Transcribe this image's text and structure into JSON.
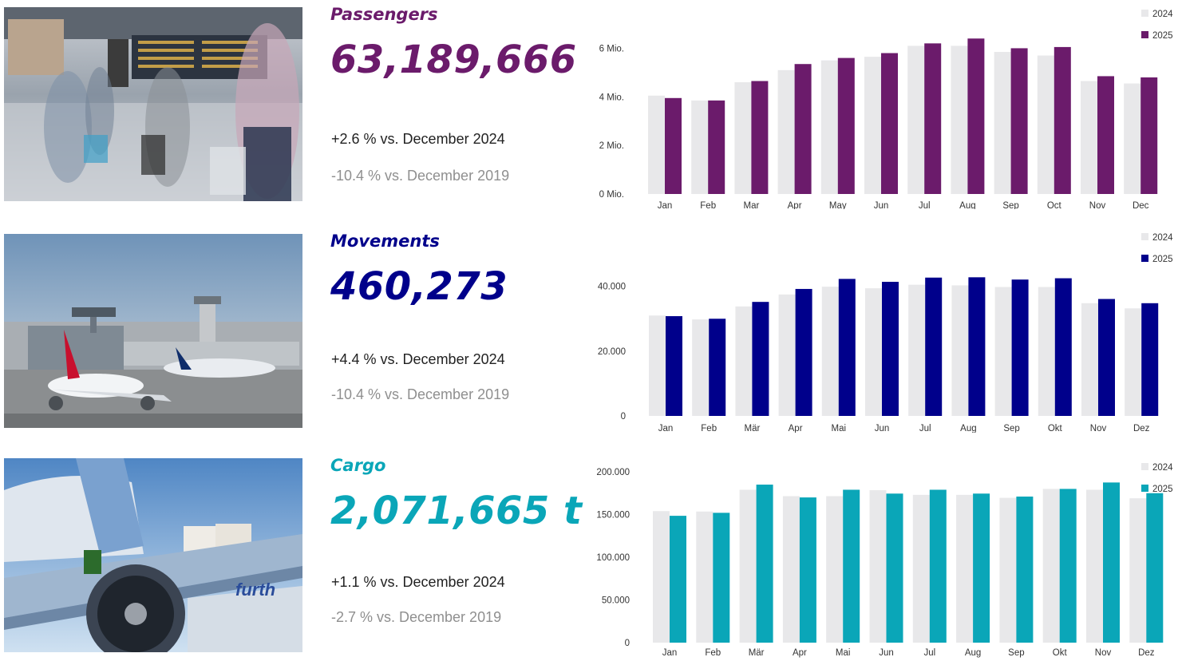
{
  "sections": [
    {
      "id": "passengers",
      "title": "Passengers",
      "kpi": "63,189,666",
      "cmp_prev": "+2.6 % vs. December 2024",
      "cmp_2019": "-10.4 % vs. December 2019",
      "color": "#6b1b6b",
      "photo_icon": "airport-terminal-crowd-photo"
    },
    {
      "id": "movements",
      "title": "Movements",
      "kpi": "460,273",
      "cmp_prev": "+4.4 % vs. December 2024",
      "cmp_2019": "-10.4 % vs. December 2019",
      "color": "#00008b",
      "photo_icon": "aircraft-at-gate-photo"
    },
    {
      "id": "cargo",
      "title": "Cargo",
      "kpi": "2,071,665 t",
      "cmp_prev": "+1.1 % vs. December 2024",
      "cmp_2019": "-2.7 % vs. December 2019",
      "color": "#0aa6b8",
      "photo_icon": "cargo-loading-photo"
    }
  ],
  "chart_data": [
    {
      "type": "bar",
      "categories": [
        "Jan",
        "Feb",
        "Mar",
        "Apr",
        "May",
        "Jun",
        "Jul",
        "Aug",
        "Sep",
        "Oct",
        "Nov",
        "Dec"
      ],
      "series": [
        {
          "name": "2024",
          "color": "#e8e8ea",
          "values": [
            4.05,
            3.85,
            4.6,
            5.1,
            5.5,
            5.65,
            6.1,
            6.1,
            5.85,
            5.7,
            4.65,
            4.55
          ]
        },
        {
          "name": "2025",
          "color": "#6b1b6b",
          "values": [
            3.95,
            3.85,
            4.65,
            5.35,
            5.6,
            5.8,
            6.2,
            6.4,
            6.0,
            6.05,
            4.85,
            4.8
          ]
        }
      ],
      "yticks": [
        0,
        2,
        4,
        6
      ],
      "ytick_labels": [
        "0 Mio.",
        "2 Mio.",
        "4 Mio.",
        "6 Mio."
      ],
      "ylim": [
        0,
        7
      ],
      "legend": "top-right",
      "grid": false
    },
    {
      "type": "bar",
      "categories": [
        "Jan",
        "Feb",
        "Mär",
        "Apr",
        "Mai",
        "Jun",
        "Jul",
        "Aug",
        "Sep",
        "Okt",
        "Nov",
        "Dez"
      ],
      "series": [
        {
          "name": "2024",
          "color": "#e8e8ea",
          "values": [
            31000,
            29800,
            33800,
            37500,
            39900,
            39400,
            40500,
            40300,
            39800,
            39800,
            34800,
            33200
          ]
        },
        {
          "name": "2025",
          "color": "#00008b",
          "values": [
            30800,
            30000,
            35200,
            39200,
            42300,
            41400,
            42700,
            42800,
            42100,
            42500,
            36100,
            34800
          ]
        }
      ],
      "yticks": [
        0,
        20000,
        40000
      ],
      "ytick_labels": [
        "0",
        "20.000",
        "40.000"
      ],
      "ylim": [
        0,
        52000
      ],
      "legend": "top-right",
      "grid": false
    },
    {
      "type": "bar",
      "categories": [
        "Jan",
        "Feb",
        "Mär",
        "Apr",
        "Mai",
        "Jun",
        "Jul",
        "Aug",
        "Sep",
        "Okt",
        "Nov",
        "Dez"
      ],
      "series": [
        {
          "name": "2024",
          "color": "#e8e8ea",
          "values": [
            154000,
            153500,
            179000,
            171500,
            171500,
            178500,
            173000,
            173000,
            169500,
            180000,
            179000,
            169000
          ]
        },
        {
          "name": "2025",
          "color": "#0aa6b8",
          "values": [
            148500,
            152000,
            185000,
            170000,
            179000,
            174500,
            179000,
            174500,
            171000,
            180000,
            187500,
            175000
          ]
        }
      ],
      "yticks": [
        0,
        50000,
        100000,
        150000,
        200000
      ],
      "ytick_labels": [
        "0",
        "50.000",
        "100.000",
        "150.000",
        "200.000"
      ],
      "ylim": [
        0,
        200000
      ],
      "legend": "top-right",
      "grid": false
    }
  ]
}
